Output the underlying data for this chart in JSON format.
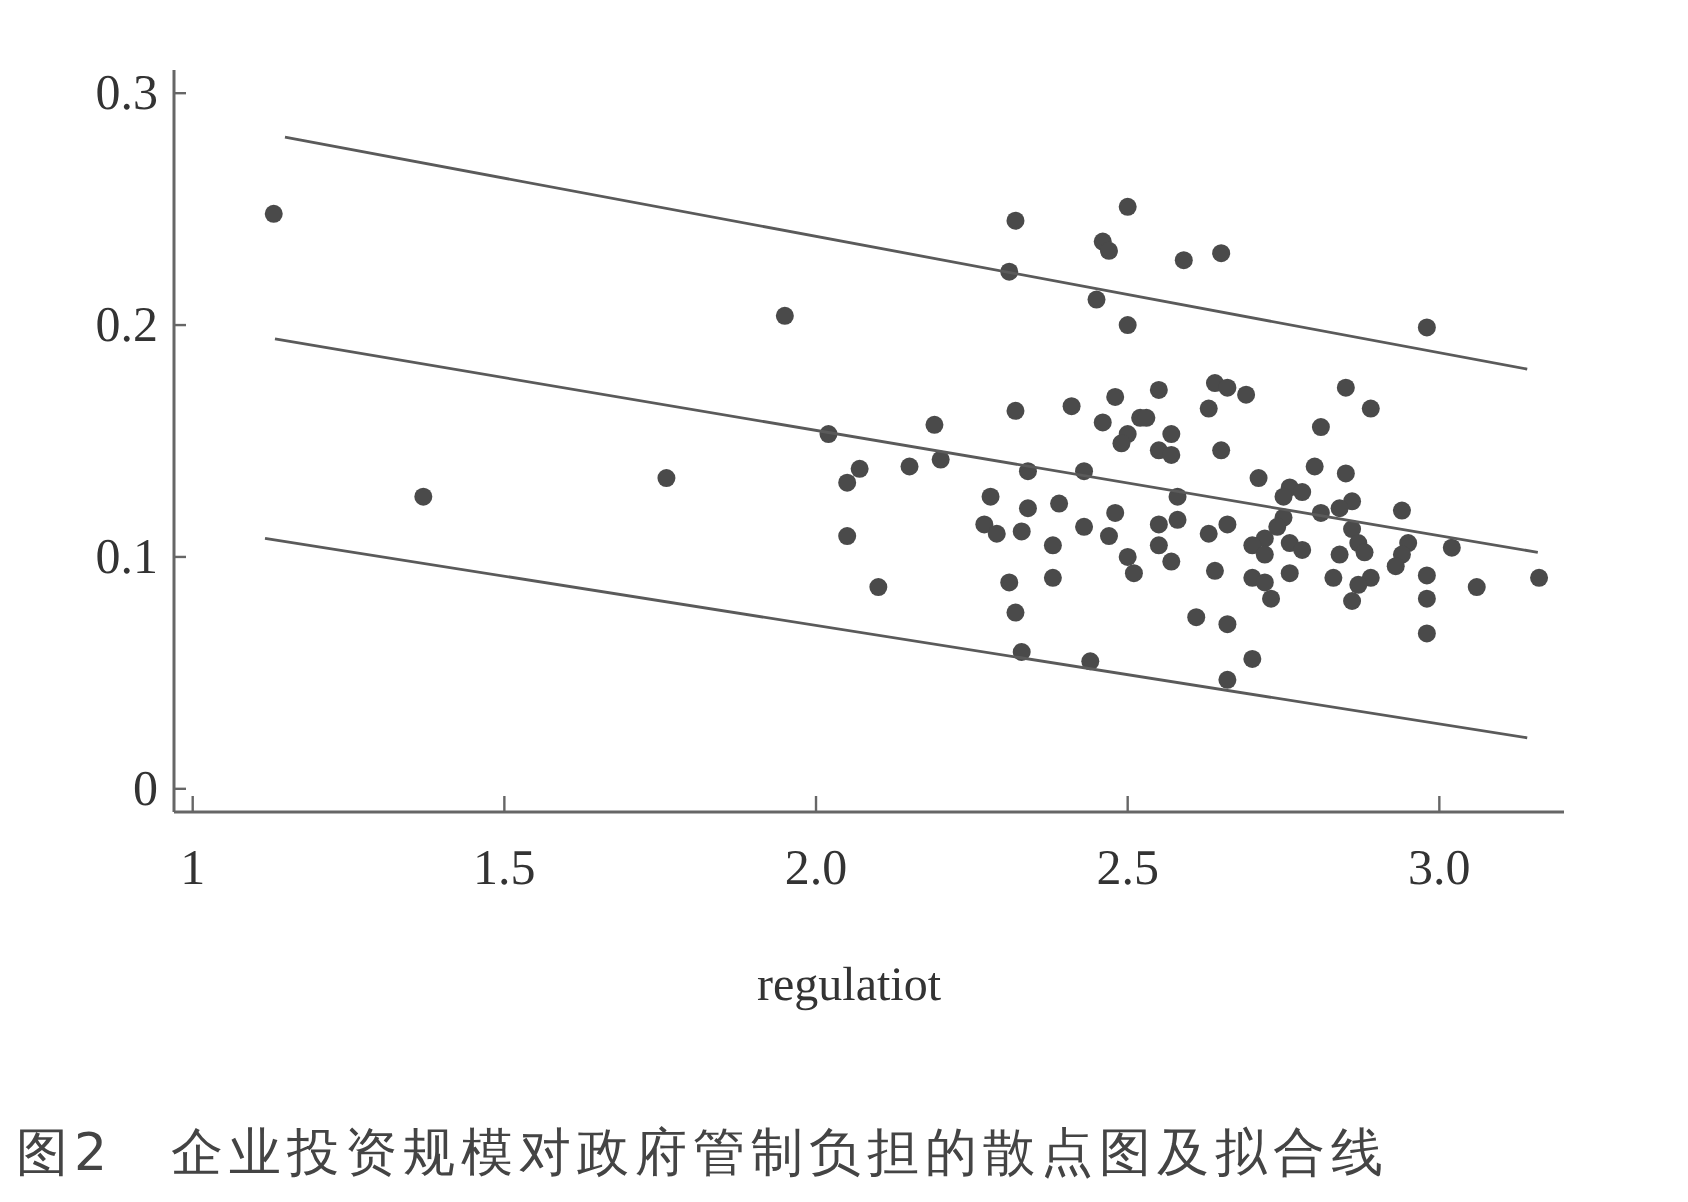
{
  "chart_data": {
    "type": "scatter",
    "xlabel": "regulatiot",
    "annotations": [
      "图2　企业投资规模对政府管制负担的散点图及拟合线"
    ],
    "xlim": [
      0.97,
      3.2
    ],
    "ylim": [
      -0.01,
      0.31
    ],
    "xticks": [
      1,
      1.5,
      {
        "value": 2,
        "label": "2.0"
      },
      2.5,
      {
        "value": 3,
        "label": "3.0"
      }
    ],
    "yticks": [
      0,
      0.1,
      0.2,
      0.3
    ],
    "series": [
      {
        "marker": "circle",
        "color": "#4a4a4a",
        "x": [
          1.13,
          1.95,
          2.02,
          1.37,
          1.76,
          2.07,
          2.05,
          2.05,
          2.1,
          2.32,
          2.5,
          2.46,
          2.47,
          2.59,
          2.31,
          2.45,
          2.5,
          2.32,
          2.41,
          2.48,
          2.55,
          2.46,
          2.52,
          2.53,
          2.5,
          2.49,
          2.57,
          2.55,
          2.57,
          2.19,
          2.2,
          2.15,
          2.34,
          2.43,
          2.28,
          2.34,
          2.39,
          2.27,
          2.29,
          2.33,
          2.38,
          2.43,
          2.48,
          2.47,
          2.55,
          2.58,
          2.58,
          2.55,
          2.5,
          2.51,
          2.57,
          2.31,
          2.38,
          2.32,
          2.61,
          2.33,
          2.44,
          2.65,
          2.98,
          2.64,
          2.66,
          2.69,
          2.63,
          2.85,
          2.89,
          2.81,
          2.65,
          2.8,
          2.85,
          2.71,
          2.76,
          2.78,
          2.75,
          2.86,
          2.84,
          2.81,
          2.94,
          2.75,
          2.74,
          2.66,
          2.63,
          2.72,
          2.7,
          2.72,
          2.76,
          2.78,
          2.86,
          2.87,
          2.88,
          2.84,
          2.95,
          2.94,
          2.93,
          3.02,
          2.64,
          2.7,
          2.72,
          2.73,
          2.76,
          2.83,
          2.89,
          2.87,
          2.86,
          2.98,
          2.98,
          3.06,
          3.16,
          2.98,
          2.66,
          2.7,
          2.66
        ],
        "values": [
          0.248,
          0.204,
          0.153,
          0.126,
          0.134,
          0.138,
          0.132,
          0.109,
          0.087,
          0.245,
          0.251,
          0.236,
          0.232,
          0.228,
          0.223,
          0.211,
          0.2,
          0.163,
          0.165,
          0.169,
          0.172,
          0.158,
          0.16,
          0.16,
          0.153,
          0.149,
          0.153,
          0.146,
          0.144,
          0.157,
          0.142,
          0.139,
          0.137,
          0.137,
          0.126,
          0.121,
          0.123,
          0.114,
          0.11,
          0.111,
          0.105,
          0.113,
          0.119,
          0.109,
          0.114,
          0.116,
          0.126,
          0.105,
          0.1,
          0.093,
          0.098,
          0.089,
          0.091,
          0.076,
          0.074,
          0.059,
          0.055,
          0.231,
          0.199,
          0.175,
          0.173,
          0.17,
          0.164,
          0.173,
          0.164,
          0.156,
          0.146,
          0.139,
          0.136,
          0.134,
          0.13,
          0.128,
          0.126,
          0.124,
          0.121,
          0.119,
          0.12,
          0.117,
          0.113,
          0.114,
          0.11,
          0.108,
          0.105,
          0.101,
          0.106,
          0.103,
          0.112,
          0.106,
          0.102,
          0.101,
          0.106,
          0.101,
          0.096,
          0.104,
          0.094,
          0.091,
          0.089,
          0.082,
          0.093,
          0.091,
          0.091,
          0.088,
          0.081,
          0.092,
          0.082,
          0.087,
          0.091,
          0.067,
          0.071,
          0.056,
          0.047
        ]
      },
      {
        "type": "line",
        "color": "#5a5a5a",
        "x": [
          1.148,
          3.141
        ],
        "values": [
          0.281,
          0.181
        ]
      },
      {
        "type": "line",
        "color": "#5a5a5a",
        "x": [
          1.132,
          3.158
        ],
        "values": [
          0.194,
          0.102
        ]
      },
      {
        "type": "line",
        "color": "#5a5a5a",
        "x": [
          1.116,
          3.141
        ],
        "values": [
          0.108,
          0.022
        ]
      }
    ]
  }
}
